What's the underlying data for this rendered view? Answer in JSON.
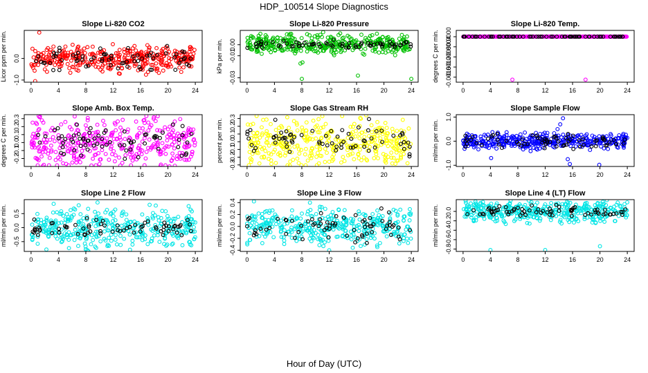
{
  "figure": {
    "title": "HDP_100514  Slope Diagnostics",
    "xlabel": "Hour of Day (UTC)"
  },
  "x_ticks": [
    0,
    4,
    8,
    12,
    16,
    20,
    24
  ],
  "chart_data": [
    {
      "type": "scatter",
      "title": "Slope Li-820 CO2",
      "ylabel": "Licor ppm per min.",
      "ylim": [
        -1.1,
        1.3
      ],
      "yticks": [
        -1.0,
        0.0
      ],
      "ytick_labels": [
        "-1.0",
        "0.0"
      ],
      "colors": {
        "main": "#ff0000",
        "overlay": "#000000"
      },
      "distribution": {
        "base": 0.0,
        "spread": 0.5,
        "overlay_spread": 0.45
      },
      "outliers": [
        {
          "x": 1.2,
          "y": 1.2
        },
        {
          "x": 0.6,
          "y": -1.05
        },
        {
          "x": 16.8,
          "y": -0.75
        },
        {
          "x": 5.6,
          "y": -0.45
        }
      ]
    },
    {
      "type": "scatter",
      "title": "Slope Li-820 Pressure",
      "ylabel": "kPa per min.",
      "ylim": [
        -0.034,
        0.013
      ],
      "yticks": [
        -0.03,
        -0.01,
        0.0
      ],
      "ytick_labels": [
        "-0.03",
        "-0.01",
        "0.00"
      ],
      "colors": {
        "main": "#00c000",
        "overlay": "#000000"
      },
      "distribution": {
        "base": 0.0,
        "spread": 0.008,
        "overlay_spread": 0.003
      },
      "outliers": [
        {
          "x": 8.0,
          "y": -0.031
        },
        {
          "x": 16.2,
          "y": -0.028
        },
        {
          "x": 24.0,
          "y": -0.031
        },
        {
          "x": 7.8,
          "y": -0.017
        },
        {
          "x": 8.1,
          "y": -0.016
        }
      ]
    },
    {
      "type": "scatter",
      "title": "Slope Li-820 Temp.",
      "ylabel": "degrees C per min.",
      "ylim": [
        -0.0018,
        0.00025
      ],
      "yticks": [
        -0.0016,
        -0.0012,
        -0.0008,
        -0.0004,
        0.0
      ],
      "ytick_labels": [
        "-0.0016",
        "-0.0012",
        "-0.0008",
        "-0.0004",
        "0.0000"
      ],
      "colors": {
        "main": "#ff00ff",
        "overlay": "#000000"
      },
      "distribution": {
        "base": 0.0,
        "spread": 0.0,
        "overlay_spread": 0.0
      },
      "outliers": [
        {
          "x": 7.2,
          "y": -0.0017
        },
        {
          "x": 17.9,
          "y": -0.0017
        }
      ]
    },
    {
      "type": "scatter",
      "title": "Slope Amb. Box Temp.",
      "ylabel": "degrees C per min.",
      "ylim": [
        -0.3,
        0.35
      ],
      "yticks": [
        -0.2,
        -0.1,
        0.0,
        0.1,
        0.2,
        0.3
      ],
      "ytick_labels": [
        "-0.2",
        "-0.1",
        "0.0",
        "0.1",
        "0.2",
        "0.3"
      ],
      "colors": {
        "main": "#ff00ff",
        "overlay": "#000000"
      },
      "distribution": {
        "base": 0.0,
        "spread": 0.27,
        "overlay_spread": 0.17
      },
      "outliers": [
        {
          "x": 18.5,
          "y": 0.33
        },
        {
          "x": 10.0,
          "y": -0.27
        }
      ]
    },
    {
      "type": "scatter",
      "title": "Slope Gas Stream RH",
      "ylabel": "percent per min.",
      "ylim": [
        -0.32,
        0.35
      ],
      "yticks": [
        -0.3,
        -0.2,
        -0.1,
        0.0,
        0.1,
        0.2,
        0.3
      ],
      "ytick_labels": [
        "-0.3",
        "-0.2",
        "-0.1",
        "0.0",
        "0.1",
        "0.2",
        "0.3"
      ],
      "colors": {
        "main": "#ffff00",
        "overlay": "#000000"
      },
      "distribution": {
        "base": 0.0,
        "spread": 0.27,
        "overlay_spread": 0.2
      },
      "outliers": [
        {
          "x": 11.0,
          "y": 0.33
        },
        {
          "x": 10.5,
          "y": -0.28
        }
      ]
    },
    {
      "type": "scatter",
      "title": "Slope Sample Flow",
      "ylabel": "ml/min per min.",
      "ylim": [
        -1.05,
        1.1
      ],
      "yticks": [
        -1.0,
        0.0,
        1.0
      ],
      "ytick_labels": [
        "-1.0",
        "0.0",
        "1.0"
      ],
      "colors": {
        "main": "#0000ff",
        "overlay": "#000000"
      },
      "distribution": {
        "base": 0.0,
        "spread": 0.28,
        "overlay_spread": 0.25
      },
      "outliers": [
        {
          "x": 14.6,
          "y": 0.95
        },
        {
          "x": 15.6,
          "y": -0.95
        },
        {
          "x": 19.9,
          "y": -0.98
        },
        {
          "x": 4.1,
          "y": -0.7
        },
        {
          "x": 15.3,
          "y": -0.75
        },
        {
          "x": 14.2,
          "y": 0.7
        },
        {
          "x": 13.8,
          "y": 0.5
        }
      ]
    },
    {
      "type": "scatter",
      "title": "Slope Line 2 Flow",
      "ylabel": "ml/min per min.",
      "ylim": [
        -0.85,
        1.0
      ],
      "yticks": [
        -0.5,
        0.0,
        0.5
      ],
      "ytick_labels": [
        "-0.5",
        "0.0",
        "0.5"
      ],
      "colors": {
        "main": "#00e5e5",
        "overlay": "#000000"
      },
      "distribution": {
        "base": 0.0,
        "spread": 0.62,
        "overlay_spread": 0.32
      },
      "outliers": [
        {
          "x": 3.3,
          "y": 0.85
        },
        {
          "x": 8.0,
          "y": -0.78
        }
      ]
    },
    {
      "type": "scatter",
      "title": "Slope Line 3 Flow",
      "ylabel": "ml/min per min.",
      "ylim": [
        -0.42,
        0.45
      ],
      "yticks": [
        -0.4,
        -0.2,
        0.0,
        0.2,
        0.4
      ],
      "ytick_labels": [
        "-0.4",
        "-0.2",
        "0.0",
        "0.2",
        "0.4"
      ],
      "colors": {
        "main": "#00e5e5",
        "overlay": "#000000"
      },
      "distribution": {
        "base": 0.0,
        "spread": 0.27,
        "overlay_spread": 0.22
      },
      "outliers": [
        {
          "x": 1.0,
          "y": 0.42
        },
        {
          "x": 12.0,
          "y": -0.4
        },
        {
          "x": 16.6,
          "y": -0.33
        },
        {
          "x": 19.0,
          "y": -0.32
        }
      ]
    },
    {
      "type": "scatter",
      "title": "Slope Line 4 (LT) Flow",
      "ylabel": "ml/min per min.",
      "ylim": [
        -0.85,
        0.25
      ],
      "yticks": [
        -0.8,
        -0.6,
        -0.4,
        -0.2,
        0.0
      ],
      "ytick_labels": [
        "-0.8",
        "-0.6",
        "-0.4",
        "-0.2",
        "0.0"
      ],
      "colors": {
        "main": "#00e5e5",
        "overlay": "#000000"
      },
      "distribution": {
        "base": 0.0,
        "spread": 0.2,
        "overlay_spread": 0.1
      },
      "outliers": [
        {
          "x": 4.0,
          "y": -0.82
        },
        {
          "x": 12.0,
          "y": -0.82
        },
        {
          "x": 20.0,
          "y": -0.74
        }
      ]
    }
  ]
}
